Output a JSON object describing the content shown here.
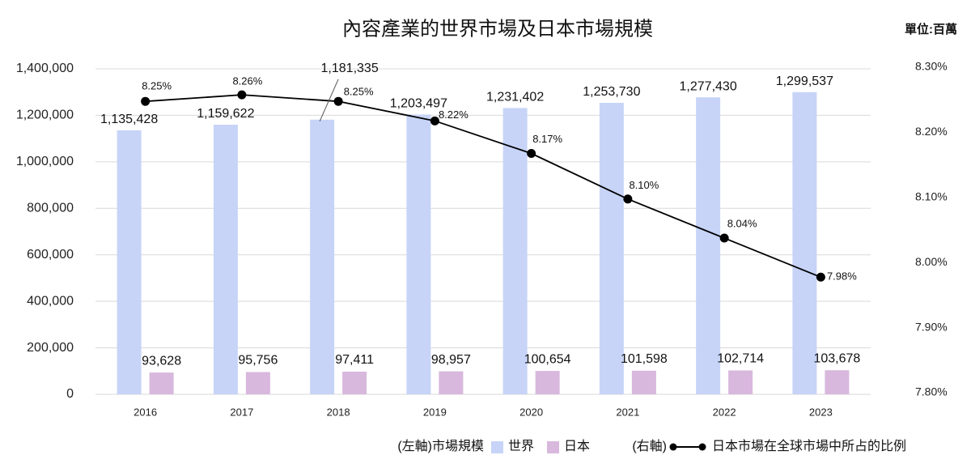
{
  "chart_data": {
    "type": "bar",
    "title": "內容產業的世界市場及日本市場規模",
    "unit": "單位:百萬",
    "categories": [
      "2016",
      "2017",
      "2018",
      "2019",
      "2020",
      "2021",
      "2022",
      "2023"
    ],
    "series": [
      {
        "name": "世界",
        "type": "bar",
        "axis": "left",
        "color": "#c7d4f8",
        "values": [
          1135428,
          1159622,
          1181335,
          1203497,
          1231402,
          1253730,
          1277430,
          1299537
        ]
      },
      {
        "name": "日本",
        "type": "bar",
        "axis": "left",
        "color": "#d8b8dd",
        "values": [
          93628,
          95756,
          97411,
          98957,
          100654,
          101598,
          102714,
          103678
        ]
      },
      {
        "name": "日本市場在全球市場中所占的比例",
        "type": "line",
        "axis": "right",
        "color": "#000000",
        "suffix": "%",
        "values": [
          8.25,
          8.26,
          8.25,
          8.22,
          8.17,
          8.1,
          8.04,
          7.98
        ]
      }
    ],
    "left_axis": {
      "range": [
        0,
        1400000
      ],
      "ticks": [
        0,
        200000,
        400000,
        600000,
        800000,
        1000000,
        1200000,
        1400000
      ]
    },
    "right_axis": {
      "range": [
        7.8,
        8.3
      ],
      "ticks": [
        7.8,
        7.9,
        8.0,
        8.1,
        8.2,
        8.3
      ],
      "suffix": "%",
      "decimals": 2
    },
    "grid": true,
    "data_labels": true,
    "legend": {
      "position": "bottom",
      "left_axis_label": "(左軸)市場規模",
      "right_axis_label": "(右軸)"
    }
  }
}
